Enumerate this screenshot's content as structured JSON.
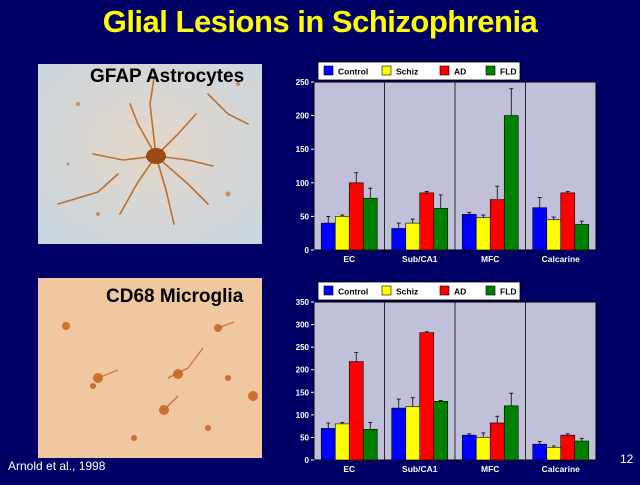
{
  "slide": {
    "title": "Glial Lesions in Schizophrenia",
    "citation": "Arnold et al., 1998",
    "slide_number": "12"
  },
  "photos": [
    {
      "label": "GFAP Astrocytes"
    },
    {
      "label": "CD68 Microglia"
    }
  ],
  "colors": {
    "background": "#000066",
    "title": "#ffff00",
    "plot_area": "#c0c0d8",
    "Control": "#0000ff",
    "Schiz": "#ffff00",
    "AD": "#ff0000",
    "FLD": "#008000"
  },
  "chart_data": [
    {
      "type": "bar",
      "categories": [
        "EC",
        "Sub/CA1",
        "MFC",
        "Calcarine"
      ],
      "series": [
        {
          "name": "Control",
          "values": [
            40,
            32,
            53,
            63
          ],
          "errors": [
            10,
            8,
            3,
            15
          ]
        },
        {
          "name": "Schiz",
          "values": [
            50,
            40,
            48,
            45
          ],
          "errors": [
            2,
            6,
            4,
            4
          ]
        },
        {
          "name": "AD",
          "values": [
            100,
            85,
            75,
            85
          ],
          "errors": [
            15,
            2,
            20,
            2
          ]
        },
        {
          "name": "FLD",
          "values": [
            77,
            62,
            200,
            38
          ],
          "errors": [
            15,
            20,
            40,
            5
          ]
        }
      ],
      "yticks": [
        "0",
        "50",
        "100",
        "150",
        "200",
        "250"
      ],
      "ylim": [
        0,
        250
      ],
      "legend": "top",
      "grid": false
    },
    {
      "type": "bar",
      "categories": [
        "EC",
        "Sub/CA1",
        "MFC",
        "Calcarine"
      ],
      "series": [
        {
          "name": "Control",
          "values": [
            70,
            115,
            55,
            35
          ],
          "errors": [
            12,
            20,
            3,
            6
          ]
        },
        {
          "name": "Schiz",
          "values": [
            80,
            118,
            50,
            28
          ],
          "errors": [
            3,
            20,
            10,
            3
          ]
        },
        {
          "name": "AD",
          "values": [
            218,
            282,
            82,
            55
          ],
          "errors": [
            20,
            2,
            15,
            3
          ]
        },
        {
          "name": "FLD",
          "values": [
            68,
            130,
            120,
            42
          ],
          "errors": [
            15,
            2,
            28,
            6
          ]
        }
      ],
      "yticks": [
        "0",
        "50",
        "100",
        "150",
        "200",
        "250",
        "300",
        "350"
      ],
      "ylim": [
        0,
        350
      ],
      "legend": "top",
      "grid": false
    }
  ]
}
